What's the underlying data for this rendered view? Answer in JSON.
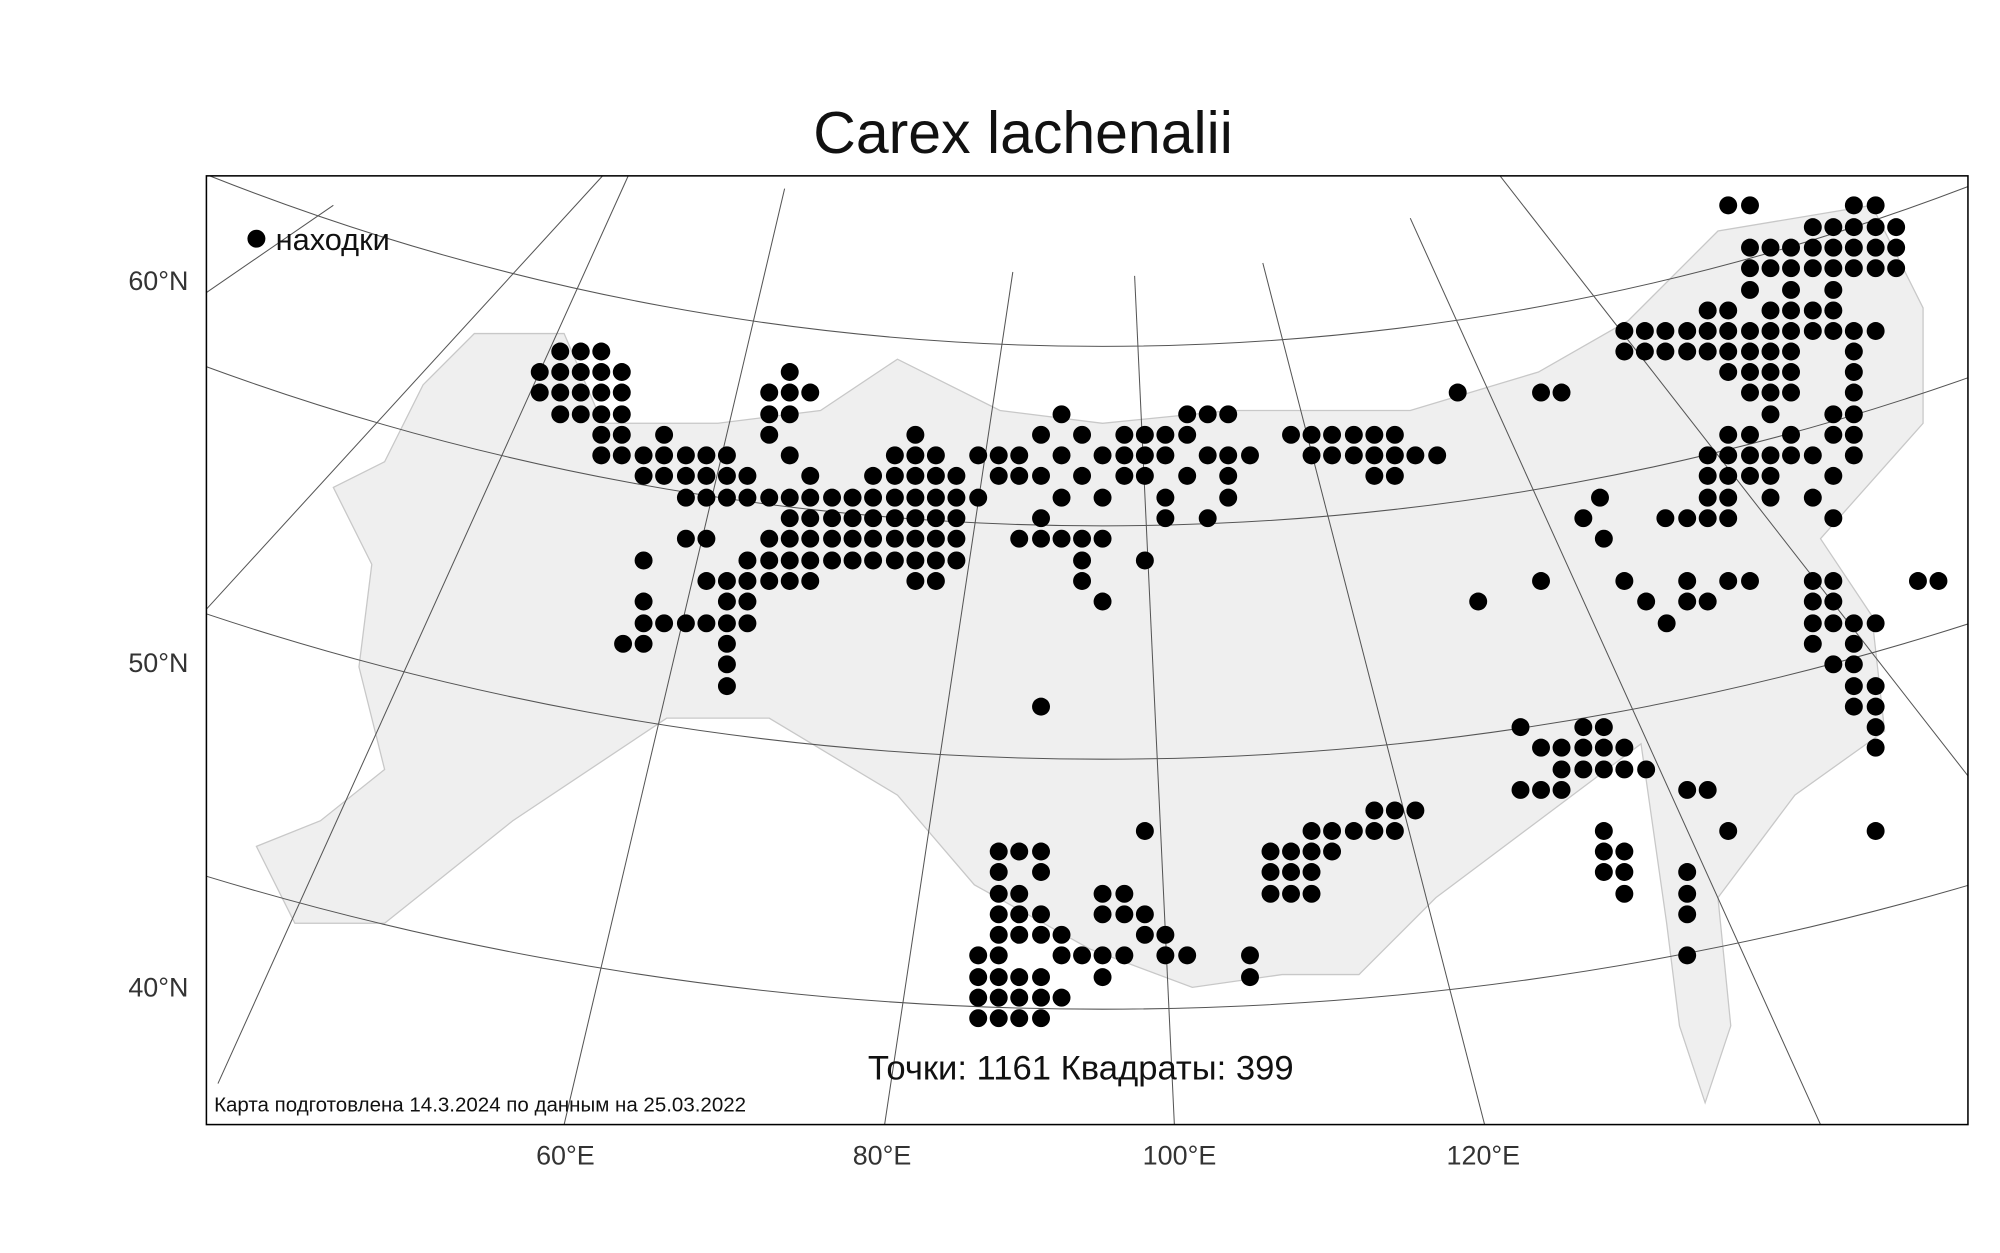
{
  "title": "Carex lachenalii",
  "legend": "находки",
  "lat_labels": [
    "60°N",
    "50°N",
    "40°N"
  ],
  "lon_labels": [
    "60°E",
    "80°E",
    "100°E",
    "120°E"
  ],
  "stats": "Точки: 1161 Квадраты: 399",
  "footer": "Карта подготовлена 14.3.2024 по данным на 25.03.2022"
}
